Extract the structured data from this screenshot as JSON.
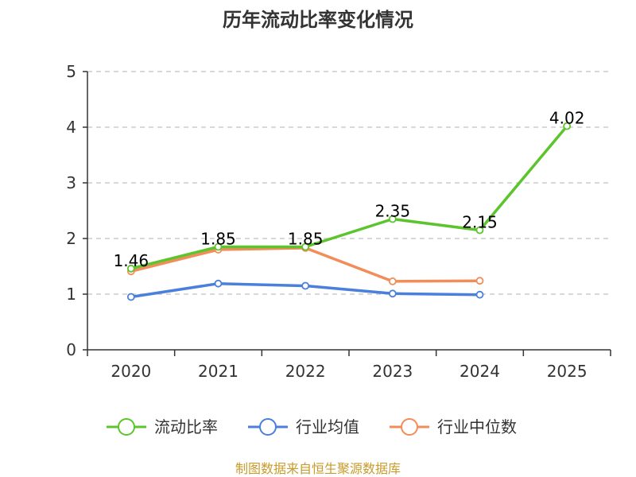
{
  "chart_data": {
    "type": "line",
    "title": "历年流动比率变化情况",
    "categories": [
      "2020",
      "2021",
      "2022",
      "2023",
      "2024",
      "2025"
    ],
    "ylim": [
      0,
      5
    ],
    "yticks": [
      "0",
      "1",
      "2",
      "3",
      "4",
      "5"
    ],
    "grid": true,
    "legend_position": "bottom",
    "series": [
      {
        "name": "流动比率",
        "color": "#5cc42c",
        "values": [
          1.46,
          1.85,
          1.85,
          2.35,
          2.15,
          4.02
        ],
        "labels": [
          "1.46",
          "1.85",
          "1.85",
          "2.35",
          "2.15",
          "4.02"
        ]
      },
      {
        "name": "行业均值",
        "color": "#4a7fdc",
        "values": [
          0.95,
          1.19,
          1.15,
          1.01,
          0.99,
          null
        ]
      },
      {
        "name": "行业中位数",
        "color": "#f28c58",
        "values": [
          1.41,
          1.8,
          1.83,
          1.23,
          1.24,
          null
        ]
      }
    ]
  },
  "footer": {
    "source": "制图数据来自恒生聚源数据库"
  }
}
